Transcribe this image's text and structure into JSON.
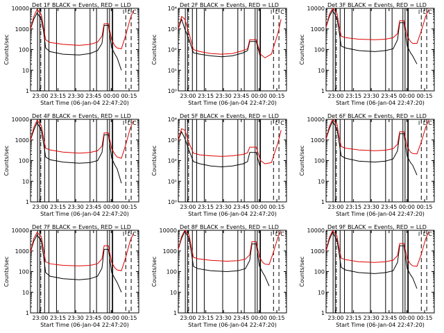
{
  "chart_data": [
    {
      "type": "line",
      "title": "Det 1F BLACK = Events, RED = LLD",
      "ylabel": "Counts/sec",
      "xlabel": "Start Time (06-Jan-04 22:47:20)",
      "yscale": "log",
      "ylim": [
        1,
        10000
      ],
      "yticks": [
        "1",
        "10",
        "100",
        "1000",
        "10000"
      ],
      "xticks": [
        "23:00",
        "23:15",
        "23:30",
        "23:45",
        "00:00",
        "00:15"
      ],
      "legend_marks": [
        "I",
        "L",
        "C"
      ],
      "series": [
        {
          "name": "Events",
          "color": "#000000",
          "x": [
            0,
            0.03,
            0.06,
            0.1,
            0.12,
            0.14,
            0.18,
            0.3,
            0.45,
            0.55,
            0.62,
            0.66,
            0.68,
            0.72,
            0.75,
            0.78,
            0.8,
            0.84
          ],
          "y": [
            1000,
            3000,
            6000,
            3000,
            800,
            120,
            80,
            60,
            55,
            65,
            90,
            200,
            1500,
            1500,
            120,
            60,
            40,
            10
          ]
        },
        {
          "name": "LLD",
          "color": "#e00000",
          "x": [
            0,
            0.03,
            0.06,
            0.1,
            0.12,
            0.14,
            0.18,
            0.3,
            0.45,
            0.55,
            0.62,
            0.66,
            0.68,
            0.72,
            0.75,
            0.78,
            0.8,
            0.84,
            0.88,
            0.92,
            0.95
          ],
          "y": [
            1000,
            4000,
            9000,
            5000,
            1200,
            300,
            220,
            180,
            160,
            180,
            230,
            450,
            1800,
            1800,
            300,
            150,
            120,
            110,
            500,
            3000,
            8000
          ]
        }
      ]
    },
    {
      "type": "line",
      "title": "Det 2F BLACK = Events, RED = LLD",
      "ylabel": "Counts/sec",
      "xlabel": "Start Time (06-Jan-04 22:47:20)",
      "yscale": "log",
      "ylim": [
        1,
        10000
      ],
      "yticks": [
        "10⁰",
        "10¹",
        "10²",
        "10³",
        "10⁴"
      ],
      "xticks": [
        "23:00",
        "23:15",
        "23:30",
        "23:45",
        "00:00",
        "00:15"
      ],
      "legend_marks": [
        "I",
        "L",
        "C"
      ],
      "series": [
        {
          "name": "Events",
          "color": "#000000",
          "x": [
            0,
            0.03,
            0.06,
            0.1,
            0.14,
            0.2,
            0.3,
            0.4,
            0.5,
            0.6,
            0.64,
            0.66,
            0.72,
            0.76
          ],
          "y": [
            1000,
            3000,
            1000,
            300,
            70,
            60,
            50,
            45,
            50,
            70,
            90,
            250,
            250,
            40
          ]
        },
        {
          "name": "LLD",
          "color": "#e00000",
          "x": [
            0,
            0.03,
            0.06,
            0.1,
            0.14,
            0.2,
            0.3,
            0.4,
            0.5,
            0.6,
            0.64,
            0.66,
            0.72,
            0.76,
            0.8,
            0.86,
            0.92,
            0.95
          ],
          "y": [
            1000,
            4000,
            3000,
            600,
            100,
            80,
            65,
            60,
            65,
            90,
            110,
            300,
            300,
            60,
            40,
            60,
            600,
            3000
          ]
        }
      ]
    },
    {
      "type": "line",
      "title": "Det 3F BLACK = Events, RED = LLD",
      "ylabel": "Counts/sec",
      "xlabel": "Start Time (06-Jan-04 22:47:20)",
      "yscale": "log",
      "ylim": [
        1,
        10000
      ],
      "yticks": [
        "1",
        "10",
        "100",
        "1000",
        "10000"
      ],
      "xticks": [
        "23:00",
        "23:15",
        "23:30",
        "23:45",
        "00:00",
        "00:15"
      ],
      "legend_marks": [
        "I",
        "L",
        "C"
      ],
      "series": [
        {
          "name": "Events",
          "color": "#000000",
          "x": [
            0,
            0.03,
            0.06,
            0.1,
            0.12,
            0.14,
            0.18,
            0.3,
            0.45,
            0.55,
            0.62,
            0.66,
            0.68,
            0.72,
            0.75,
            0.78,
            0.8,
            0.84
          ],
          "y": [
            1200,
            4000,
            8000,
            3500,
            800,
            150,
            120,
            90,
            80,
            90,
            110,
            300,
            2000,
            2000,
            150,
            70,
            50,
            20
          ]
        },
        {
          "name": "LLD",
          "color": "#e00000",
          "x": [
            0,
            0.03,
            0.06,
            0.1,
            0.12,
            0.14,
            0.18,
            0.3,
            0.45,
            0.55,
            0.62,
            0.66,
            0.68,
            0.72,
            0.75,
            0.78,
            0.8,
            0.84,
            0.88,
            0.92,
            0.95
          ],
          "y": [
            1200,
            5000,
            10000,
            6000,
            1500,
            450,
            380,
            320,
            300,
            320,
            380,
            600,
            2500,
            2500,
            450,
            250,
            200,
            200,
            800,
            4000,
            9000
          ]
        }
      ]
    },
    {
      "type": "line",
      "title": "Det 4F BLACK = Events, RED = LLD",
      "ylabel": "Counts/sec",
      "xlabel": "Start Time (06-Jan-04 22:47:20)",
      "yscale": "log",
      "ylim": [
        1,
        10000
      ],
      "yticks": [
        "1",
        "10",
        "100",
        "1000",
        "10000"
      ],
      "xticks": [
        "23:00",
        "23:15",
        "23:30",
        "23:45",
        "00:00",
        "00:15"
      ],
      "legend_marks": [
        "I",
        "L",
        "C"
      ],
      "series": [
        {
          "name": "Events",
          "color": "#000000",
          "x": [
            0,
            0.03,
            0.06,
            0.1,
            0.12,
            0.14,
            0.18,
            0.3,
            0.45,
            0.55,
            0.62,
            0.66,
            0.68,
            0.72,
            0.75,
            0.78,
            0.8,
            0.84
          ],
          "y": [
            1000,
            3000,
            7000,
            3000,
            700,
            150,
            110,
            85,
            75,
            80,
            100,
            250,
            1800,
            1800,
            130,
            60,
            40,
            8
          ]
        },
        {
          "name": "LLD",
          "color": "#e00000",
          "x": [
            0,
            0.03,
            0.06,
            0.1,
            0.12,
            0.14,
            0.18,
            0.3,
            0.45,
            0.55,
            0.62,
            0.66,
            0.68,
            0.72,
            0.75,
            0.78,
            0.8,
            0.84,
            0.88,
            0.92,
            0.95
          ],
          "y": [
            1000,
            4000,
            9000,
            5000,
            1300,
            400,
            330,
            260,
            230,
            250,
            300,
            500,
            2200,
            2200,
            380,
            200,
            150,
            130,
            600,
            3500,
            8500
          ]
        }
      ]
    },
    {
      "type": "line",
      "title": "Det 5F BLACK = Events, RED = LLD",
      "ylabel": "Counts/sec",
      "xlabel": "Start Time (06-Jan-04 22:47:20)",
      "yscale": "log",
      "ylim": [
        1,
        10000
      ],
      "yticks": [
        "10⁰",
        "10¹",
        "10²",
        "10³",
        "10⁴"
      ],
      "xticks": [
        "23:00",
        "23:15",
        "23:30",
        "23:45",
        "00:00",
        "00:15"
      ],
      "legend_marks": [
        "I",
        "L",
        "C"
      ],
      "series": [
        {
          "name": "Events",
          "color": "#000000",
          "x": [
            0,
            0.03,
            0.06,
            0.1,
            0.14,
            0.2,
            0.3,
            0.4,
            0.5,
            0.6,
            0.64,
            0.66,
            0.72,
            0.76
          ],
          "y": [
            1000,
            2500,
            1200,
            300,
            90,
            70,
            55,
            50,
            55,
            70,
            90,
            250,
            250,
            40
          ]
        },
        {
          "name": "LLD",
          "color": "#e00000",
          "x": [
            0,
            0.03,
            0.06,
            0.1,
            0.14,
            0.2,
            0.3,
            0.4,
            0.5,
            0.6,
            0.64,
            0.66,
            0.72,
            0.76,
            0.8,
            0.86,
            0.92,
            0.95
          ],
          "y": [
            1000,
            3500,
            3000,
            700,
            230,
            190,
            170,
            160,
            170,
            200,
            240,
            450,
            450,
            100,
            70,
            80,
            700,
            3000
          ]
        }
      ]
    },
    {
      "type": "line",
      "title": "Det 6F BLACK = Events, RED = LLD",
      "ylabel": "Counts/sec",
      "xlabel": "Start Time (06-Jan-04 22:47:20)",
      "yscale": "log",
      "ylim": [
        1,
        10000
      ],
      "yticks": [
        "1",
        "10",
        "100",
        "1000",
        "10000"
      ],
      "xticks": [
        "23:00",
        "23:15",
        "23:30",
        "23:45",
        "00:00",
        "00:15"
      ],
      "legend_marks": [
        "I",
        "L",
        "C"
      ],
      "series": [
        {
          "name": "Events",
          "color": "#000000",
          "x": [
            0,
            0.03,
            0.06,
            0.1,
            0.12,
            0.14,
            0.18,
            0.3,
            0.45,
            0.55,
            0.62,
            0.66,
            0.68,
            0.72,
            0.75,
            0.78,
            0.8,
            0.84
          ],
          "y": [
            1100,
            3500,
            8000,
            3500,
            800,
            170,
            130,
            95,
            85,
            95,
            120,
            300,
            2000,
            2000,
            160,
            80,
            60,
            20
          ]
        },
        {
          "name": "LLD",
          "color": "#e00000",
          "x": [
            0,
            0.03,
            0.06,
            0.1,
            0.12,
            0.14,
            0.18,
            0.3,
            0.45,
            0.55,
            0.62,
            0.66,
            0.68,
            0.72,
            0.75,
            0.78,
            0.8,
            0.84,
            0.88,
            0.92,
            0.95
          ],
          "y": [
            1100,
            4500,
            10000,
            6000,
            1500,
            480,
            400,
            330,
            300,
            320,
            380,
            620,
            2500,
            2500,
            480,
            260,
            220,
            210,
            800,
            4000,
            9500
          ]
        }
      ]
    },
    {
      "type": "line",
      "title": "Det 7F BLACK = Events, RED = LLD",
      "ylabel": "Counts/sec",
      "xlabel": "Start Time (06-Jan-04 22:47:20)",
      "yscale": "log",
      "ylim": [
        1,
        10000
      ],
      "yticks": [
        "1",
        "10",
        "100",
        "1000",
        "10000"
      ],
      "xticks": [
        "23:00",
        "23:15",
        "23:30",
        "23:45",
        "00:00",
        "00:15"
      ],
      "legend_marks": [
        "I",
        "L",
        "C"
      ],
      "series": [
        {
          "name": "Events",
          "color": "#000000",
          "x": [
            0,
            0.03,
            0.06,
            0.1,
            0.12,
            0.14,
            0.18,
            0.3,
            0.45,
            0.55,
            0.62,
            0.66,
            0.68,
            0.72,
            0.75,
            0.78,
            0.8,
            0.84
          ],
          "y": [
            900,
            3000,
            6000,
            3000,
            600,
            90,
            60,
            45,
            40,
            45,
            60,
            150,
            1200,
            1200,
            90,
            45,
            30,
            10
          ]
        },
        {
          "name": "LLD",
          "color": "#e00000",
          "x": [
            0,
            0.03,
            0.06,
            0.1,
            0.12,
            0.14,
            0.18,
            0.3,
            0.45,
            0.55,
            0.62,
            0.66,
            0.68,
            0.72,
            0.75,
            0.78,
            0.8,
            0.84,
            0.88,
            0.92,
            0.95
          ],
          "y": [
            900,
            4000,
            8000,
            5000,
            1200,
            300,
            240,
            200,
            190,
            200,
            240,
            420,
            1800,
            1800,
            280,
            150,
            120,
            110,
            500,
            3000,
            7000
          ]
        }
      ]
    },
    {
      "type": "line",
      "title": "Det 8F BLACK = Events, RED = LLD",
      "ylabel": "Counts/sec",
      "xlabel": "Start Time (06-Jan-04 22:47:20)",
      "yscale": "log",
      "ylim": [
        1,
        10000
      ],
      "yticks": [
        "1",
        "10",
        "100",
        "1000",
        "10000"
      ],
      "xticks": [
        "23:00",
        "23:15",
        "23:30",
        "23:45",
        "00:00",
        "00:15"
      ],
      "legend_marks": [
        "I",
        "L",
        "C"
      ],
      "series": [
        {
          "name": "Events",
          "color": "#000000",
          "x": [
            0,
            0.03,
            0.06,
            0.1,
            0.12,
            0.14,
            0.18,
            0.3,
            0.45,
            0.55,
            0.62,
            0.66,
            0.68,
            0.72,
            0.75,
            0.78,
            0.8,
            0.84
          ],
          "y": [
            1200,
            4000,
            9000,
            4000,
            900,
            180,
            140,
            110,
            100,
            110,
            140,
            350,
            2200,
            2200,
            180,
            90,
            60,
            20
          ]
        },
        {
          "name": "LLD",
          "color": "#e00000",
          "x": [
            0,
            0.03,
            0.06,
            0.1,
            0.12,
            0.14,
            0.18,
            0.3,
            0.45,
            0.55,
            0.62,
            0.66,
            0.68,
            0.72,
            0.75,
            0.78,
            0.8,
            0.84,
            0.88,
            0.92,
            0.95
          ],
          "y": [
            1200,
            5000,
            10000,
            6000,
            1600,
            500,
            420,
            350,
            320,
            340,
            400,
            650,
            2800,
            2800,
            500,
            280,
            230,
            220,
            900,
            4500,
            9500
          ]
        }
      ]
    },
    {
      "type": "line",
      "title": "Det 9F BLACK = Events, RED = LLD",
      "ylabel": "Counts/sec",
      "xlabel": "Start Time (06-Jan-04 22:47:20)",
      "yscale": "log",
      "ylim": [
        1,
        10000
      ],
      "yticks": [
        "1",
        "10",
        "100",
        "1000",
        "10000"
      ],
      "xticks": [
        "23:00",
        "23:15",
        "23:30",
        "23:45",
        "00:00",
        "00:15"
      ],
      "legend_marks": [
        "I",
        "L",
        "C"
      ],
      "series": [
        {
          "name": "Events",
          "color": "#000000",
          "x": [
            0,
            0.03,
            0.06,
            0.1,
            0.12,
            0.14,
            0.18,
            0.3,
            0.45,
            0.55,
            0.62,
            0.66,
            0.68,
            0.72,
            0.75,
            0.78,
            0.8,
            0.84
          ],
          "y": [
            1000,
            3500,
            8000,
            3500,
            800,
            160,
            120,
            90,
            80,
            90,
            110,
            280,
            1800,
            1800,
            140,
            70,
            50,
            15
          ]
        },
        {
          "name": "LLD",
          "color": "#e00000",
          "x": [
            0,
            0.03,
            0.06,
            0.1,
            0.12,
            0.14,
            0.18,
            0.3,
            0.45,
            0.55,
            0.62,
            0.66,
            0.68,
            0.72,
            0.75,
            0.78,
            0.8,
            0.84,
            0.88,
            0.92,
            0.95
          ],
          "y": [
            1000,
            4500,
            9500,
            5500,
            1400,
            450,
            380,
            300,
            280,
            300,
            360,
            600,
            2300,
            2300,
            420,
            230,
            190,
            180,
            700,
            3800,
            9000
          ]
        }
      ]
    }
  ],
  "vlines": {
    "solid": [
      0.065,
      0.085,
      0.13,
      0.17,
      0.24,
      0.41,
      0.55,
      0.61,
      0.71,
      0.73,
      0.755,
      0.76
    ],
    "dash": [
      0.88,
      0.93
    ],
    "dashdot": [
      0.095
    ]
  }
}
